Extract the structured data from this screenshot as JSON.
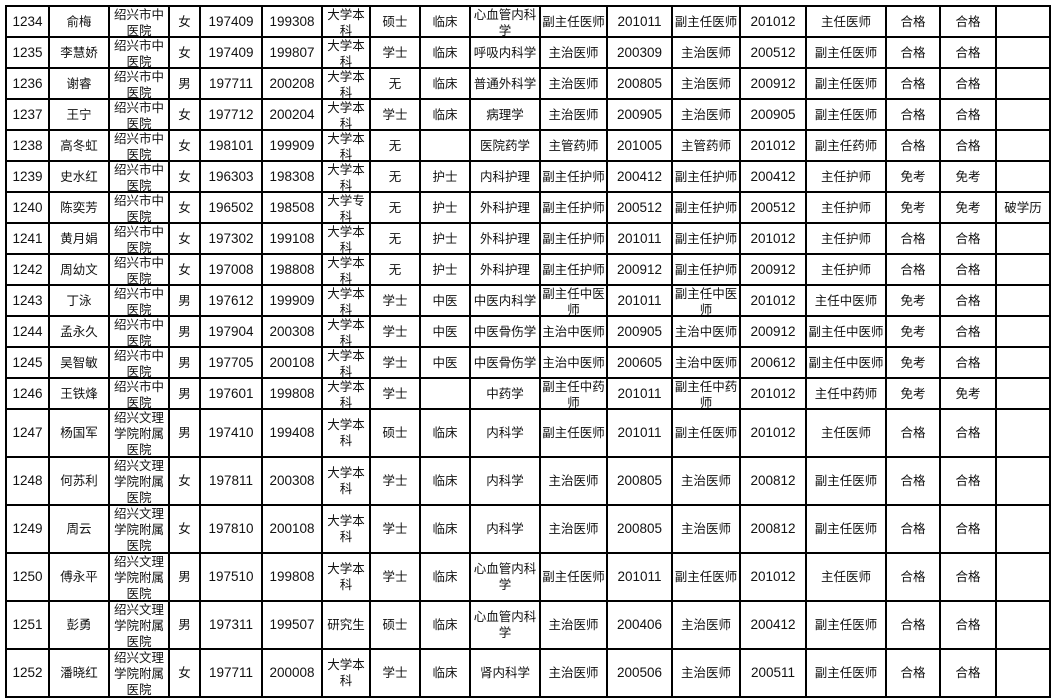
{
  "rows": [
    [
      "1234",
      "俞梅",
      "绍兴市中医院",
      "女",
      "197409",
      "199308",
      "大学本科",
      "硕士",
      "临床",
      "心血管内科学",
      "副主任医师",
      "201011",
      "副主任医师",
      "201012",
      "主任医师",
      "合格",
      "合格",
      ""
    ],
    [
      "1235",
      "李慧娇",
      "绍兴市中医院",
      "女",
      "197409",
      "199807",
      "大学本科",
      "学士",
      "临床",
      "呼吸内科学",
      "主治医师",
      "200309",
      "主治医师",
      "200512",
      "副主任医师",
      "合格",
      "合格",
      ""
    ],
    [
      "1236",
      "谢睿",
      "绍兴市中医院",
      "男",
      "197711",
      "200208",
      "大学本科",
      "无",
      "临床",
      "普通外科学",
      "主治医师",
      "200805",
      "主治医师",
      "200912",
      "副主任医师",
      "合格",
      "合格",
      ""
    ],
    [
      "1237",
      "王宁",
      "绍兴市中医院",
      "女",
      "197712",
      "200204",
      "大学本科",
      "学士",
      "临床",
      "病理学",
      "主治医师",
      "200905",
      "主治医师",
      "200905",
      "副主任医师",
      "合格",
      "合格",
      ""
    ],
    [
      "1238",
      "高冬虹",
      "绍兴市中医院",
      "女",
      "198101",
      "199909",
      "大学本科",
      "无",
      "",
      "医院药学",
      "主管药师",
      "201005",
      "主管药师",
      "201012",
      "副主任药师",
      "合格",
      "合格",
      ""
    ],
    [
      "1239",
      "史水红",
      "绍兴市中医院",
      "女",
      "196303",
      "198308",
      "大学本科",
      "无",
      "护士",
      "内科护理",
      "副主任护师",
      "200412",
      "副主任护师",
      "200412",
      "主任护师",
      "免考",
      "免考",
      ""
    ],
    [
      "1240",
      "陈奕芳",
      "绍兴市中医院",
      "女",
      "196502",
      "198508",
      "大学专科",
      "无",
      "护士",
      "外科护理",
      "副主任护师",
      "200512",
      "副主任护师",
      "200512",
      "主任护师",
      "免考",
      "免考",
      "破学历"
    ],
    [
      "1241",
      "黄月娟",
      "绍兴市中医院",
      "女",
      "197302",
      "199108",
      "大学本科",
      "无",
      "护士",
      "外科护理",
      "副主任护师",
      "201011",
      "副主任护师",
      "201012",
      "主任护师",
      "合格",
      "合格",
      ""
    ],
    [
      "1242",
      "周幼文",
      "绍兴市中医院",
      "女",
      "197008",
      "198808",
      "大学本科",
      "无",
      "护士",
      "外科护理",
      "副主任护师",
      "200912",
      "副主任护师",
      "200912",
      "主任护师",
      "合格",
      "合格",
      ""
    ],
    [
      "1243",
      "丁泳",
      "绍兴市中医院",
      "男",
      "197612",
      "199909",
      "大学本科",
      "学士",
      "中医",
      "中医内科学",
      "副主任中医师",
      "201011",
      "副主任中医师",
      "201012",
      "主任中医师",
      "免考",
      "合格",
      ""
    ],
    [
      "1244",
      "孟永久",
      "绍兴市中医院",
      "男",
      "197904",
      "200308",
      "大学本科",
      "学士",
      "中医",
      "中医骨伤学",
      "主治中医师",
      "200905",
      "主治中医师",
      "200912",
      "副主任中医师",
      "免考",
      "合格",
      ""
    ],
    [
      "1245",
      "吴智敏",
      "绍兴市中医院",
      "男",
      "197705",
      "200108",
      "大学本科",
      "学士",
      "中医",
      "中医骨伤学",
      "主治中医师",
      "200605",
      "主治中医师",
      "200612",
      "副主任中医师",
      "免考",
      "合格",
      ""
    ],
    [
      "1246",
      "王铁烽",
      "绍兴市中医院",
      "男",
      "197601",
      "199808",
      "大学本科",
      "学士",
      "",
      "中药学",
      "副主任中药师",
      "201011",
      "副主任中药师",
      "201012",
      "主任中药师",
      "免考",
      "免考",
      ""
    ],
    [
      "1247",
      "杨国军",
      "绍兴文理学院附属医院",
      "男",
      "197410",
      "199408",
      "大学本科",
      "硕士",
      "临床",
      "内科学",
      "副主任医师",
      "201011",
      "副主任医师",
      "201012",
      "主任医师",
      "合格",
      "合格",
      ""
    ],
    [
      "1248",
      "何苏利",
      "绍兴文理学院附属医院",
      "女",
      "197811",
      "200308",
      "大学本科",
      "学士",
      "临床",
      "内科学",
      "主治医师",
      "200805",
      "主治医师",
      "200812",
      "副主任医师",
      "合格",
      "合格",
      ""
    ],
    [
      "1249",
      "周云",
      "绍兴文理学院附属医院",
      "女",
      "197810",
      "200108",
      "大学本科",
      "学士",
      "临床",
      "内科学",
      "主治医师",
      "200805",
      "主治医师",
      "200812",
      "副主任医师",
      "合格",
      "合格",
      ""
    ],
    [
      "1250",
      "傅永平",
      "绍兴文理学院附属医院",
      "男",
      "197510",
      "199808",
      "大学本科",
      "学士",
      "临床",
      "心血管内科学",
      "副主任医师",
      "201011",
      "副主任医师",
      "201012",
      "主任医师",
      "合格",
      "合格",
      ""
    ],
    [
      "1251",
      "彭勇",
      "绍兴文理学院附属医院",
      "男",
      "197311",
      "199507",
      "研究生",
      "硕士",
      "临床",
      "心血管内科学",
      "主治医师",
      "200406",
      "主治医师",
      "200412",
      "副主任医师",
      "合格",
      "合格",
      ""
    ],
    [
      "1252",
      "潘晓红",
      "绍兴文理学院附属医院",
      "女",
      "197711",
      "200008",
      "大学本科",
      "学士",
      "临床",
      "肾内科学",
      "主治医师",
      "200506",
      "主治医师",
      "200511",
      "副主任医师",
      "合格",
      "合格",
      ""
    ]
  ]
}
